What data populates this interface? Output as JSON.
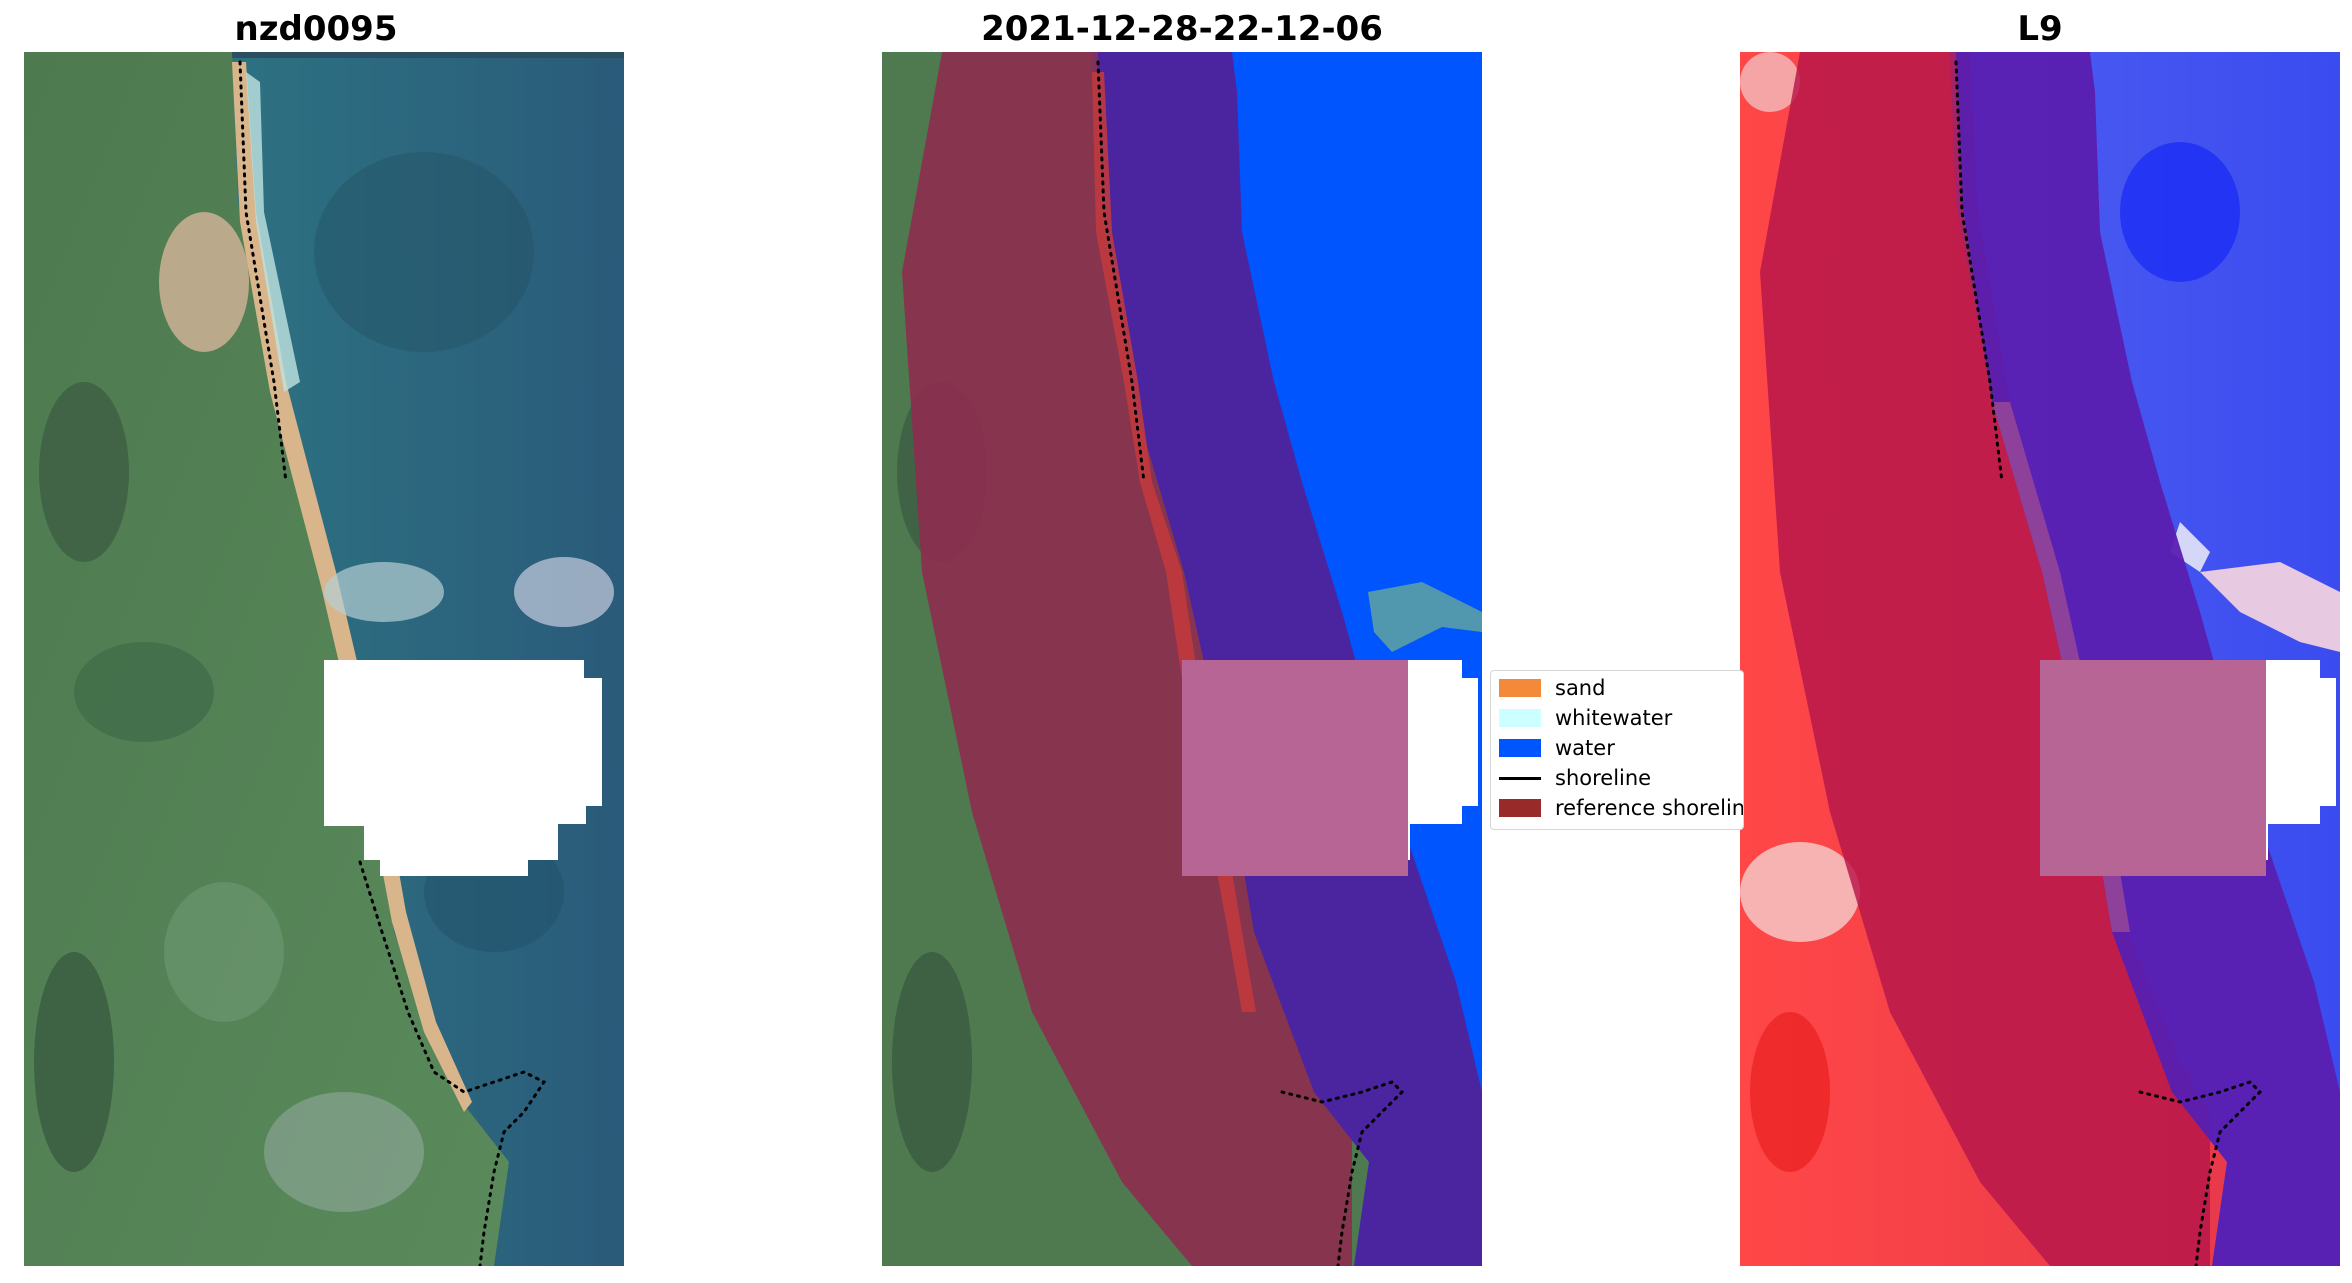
{
  "panels": [
    {
      "title": "nzd0095",
      "kind": "rgb"
    },
    {
      "title": "2021-12-28-22-12-06",
      "kind": "classified"
    },
    {
      "title": "L9",
      "kind": "index"
    }
  ],
  "legend": {
    "items": [
      {
        "label": "sand",
        "color": "#f28a3a",
        "type": "patch"
      },
      {
        "label": "whitewater",
        "color": "#ccffff",
        "type": "patch"
      },
      {
        "label": "water",
        "color": "#0055ff",
        "type": "patch"
      },
      {
        "label": "shoreline",
        "color": "#000000",
        "type": "line"
      },
      {
        "label": "reference shoreline",
        "color": "#992a2a",
        "type": "patch"
      }
    ]
  },
  "colors": {
    "land_green": "#4f7a50",
    "ocean_teal": "#2c6f7e",
    "beach_sand": "#d9b58c",
    "water_blue": "#0055ff",
    "buffer_purple": "#4b24a0",
    "buffer_crimson": "#a0264a",
    "mask_pink": "#b76594",
    "index_red": "#f23a3a",
    "index_blue": "#3344ee"
  }
}
